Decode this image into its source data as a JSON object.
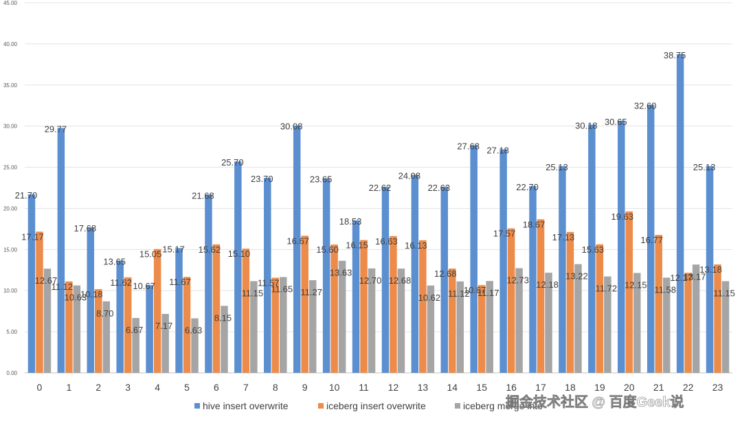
{
  "chart_data": {
    "type": "bar",
    "title": "",
    "xlabel": "",
    "ylabel": "",
    "ylim": [
      0,
      45
    ],
    "ytick_labels": [
      "0.00",
      "5.00",
      "10.00",
      "15.00",
      "20.00",
      "25.00",
      "30.00",
      "35.00",
      "40.00",
      "45.00"
    ],
    "grid": true,
    "legend_position": "bottom",
    "categories": [
      "0",
      "1",
      "2",
      "3",
      "4",
      "5",
      "6",
      "7",
      "8",
      "9",
      "10",
      "11",
      "12",
      "13",
      "14",
      "15",
      "16",
      "17",
      "18",
      "19",
      "20",
      "21",
      "22",
      "23"
    ],
    "series": [
      {
        "name": "hive insert overwrite",
        "color": "#5b8fd0",
        "values": [
          21.7,
          29.77,
          17.68,
          13.65,
          10.67,
          15.17,
          21.68,
          25.7,
          23.7,
          30.08,
          23.65,
          18.53,
          22.62,
          24.08,
          22.63,
          27.68,
          27.18,
          22.7,
          25.13,
          30.18,
          30.65,
          32.6,
          38.75,
          25.13
        ],
        "labels": [
          "21.70",
          "29.77",
          "17.68",
          "13.65",
          "10.67",
          "15.17",
          "21.68",
          "25.70",
          "23.70",
          "30.08",
          "23.65",
          "18.53",
          "22.62",
          "24.08",
          "22.63",
          "27.68",
          "27.18",
          "22.70",
          "25.13",
          "30.18",
          "30.65",
          "32.60",
          "38.75",
          "25.13"
        ]
      },
      {
        "name": "iceberg insert overwrite",
        "color": "#ec8b4a",
        "values": [
          17.17,
          11.12,
          10.18,
          11.62,
          15.05,
          11.67,
          15.62,
          15.1,
          11.57,
          16.67,
          15.6,
          16.15,
          16.63,
          16.13,
          12.68,
          10.67,
          17.57,
          18.67,
          17.13,
          15.63,
          19.63,
          16.77,
          12.17,
          13.18
        ],
        "labels": [
          "17.17",
          "11.12",
          "10.18",
          "11.62",
          "15.05",
          "11.67",
          "15.62",
          "15.10",
          "11.57",
          "16.67",
          "15.60",
          "16.15",
          "16.63",
          "16.13",
          "12.68",
          "10.67",
          "17.57",
          "18.67",
          "17.13",
          "15.63",
          "19.63",
          "16.77",
          "12.17",
          "13.18"
        ]
      },
      {
        "name": "iceberg merge into",
        "color": "#a5a5a5",
        "values": [
          12.67,
          10.63,
          8.7,
          6.67,
          7.17,
          6.63,
          8.15,
          11.15,
          11.65,
          11.27,
          13.63,
          12.7,
          12.68,
          10.62,
          11.12,
          11.17,
          12.73,
          12.18,
          13.22,
          11.72,
          12.15,
          11.58,
          13.17,
          11.15
        ],
        "labels": [
          "12.67",
          "10.63",
          "8.70",
          "6.67",
          "7.17",
          "6.63",
          "8.15",
          "11.15",
          "11.65",
          "11.27",
          "13.63",
          "12.70",
          "12.68",
          "10.62",
          "11.12",
          "11.17",
          "12.73",
          "12.18",
          "13.22",
          "11.72",
          "12.15",
          "11.58",
          "13.17",
          "11.15"
        ]
      }
    ]
  },
  "watermark": "掘金技术社区 @ 百度Geek说"
}
